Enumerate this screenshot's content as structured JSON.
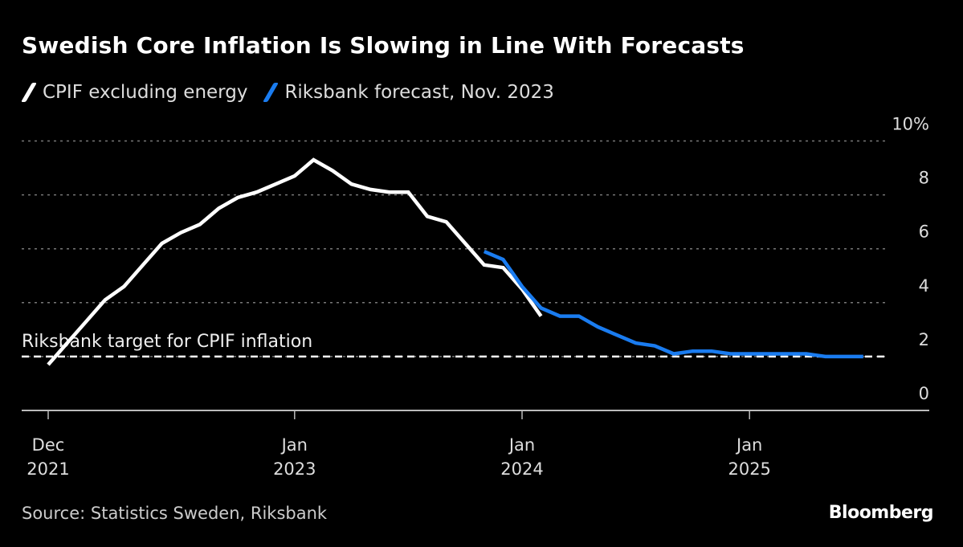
{
  "chart_data": {
    "type": "line",
    "title": "Swedish Core Inflation Is Slowing in Line With Forecasts",
    "xlabel": "",
    "ylabel": "",
    "ylim": [
      0,
      10
    ],
    "yticks": [
      {
        "value": 0,
        "label": "0"
      },
      {
        "value": 2,
        "label": "2"
      },
      {
        "value": 4,
        "label": "4"
      },
      {
        "value": 6,
        "label": "6"
      },
      {
        "value": 8,
        "label": "8"
      },
      {
        "value": 10,
        "label": "10%"
      }
    ],
    "xlim_month_index": [
      0,
      45.5
    ],
    "x_start": "Dec 2021",
    "xticks": [
      {
        "month_index": 0,
        "line1": "Dec",
        "line2": "2021"
      },
      {
        "month_index": 13,
        "line1": "Jan",
        "line2": "2023"
      },
      {
        "month_index": 25,
        "line1": "Jan",
        "line2": "2024"
      },
      {
        "month_index": 37,
        "line1": "Jan",
        "line2": "2025"
      }
    ],
    "grid": "horizontal-dotted",
    "legend_position": "top-left",
    "series": [
      {
        "name": "CPIF excluding energy",
        "color": "#ffffff",
        "start_month_index": 0,
        "x": [
          "Dec 2021",
          "Jan 2022",
          "Feb 2022",
          "Mar 2022",
          "Apr 2022",
          "May 2022",
          "Jun 2022",
          "Jul 2022",
          "Aug 2022",
          "Sep 2022",
          "Oct 2022",
          "Nov 2022",
          "Dec 2022",
          "Jan 2023",
          "Feb 2023",
          "Mar 2023",
          "Apr 2023",
          "May 2023",
          "Jun 2023",
          "Jul 2023",
          "Aug 2023",
          "Sep 2023",
          "Oct 2023",
          "Nov 2023",
          "Dec 2023",
          "Jan 2024",
          "Feb 2024"
        ],
        "values": [
          1.7,
          2.5,
          3.3,
          4.1,
          4.6,
          5.4,
          6.2,
          6.6,
          6.9,
          7.5,
          7.9,
          8.1,
          8.4,
          8.7,
          9.3,
          8.9,
          8.4,
          8.2,
          8.1,
          8.1,
          7.2,
          7.0,
          6.2,
          5.4,
          5.3,
          4.5,
          3.5
        ]
      },
      {
        "name": "Riksbank forecast, Nov. 2023",
        "color": "#1a7cf0",
        "start_month_index": 23,
        "x": [
          "Nov 2023",
          "Dec 2023",
          "Jan 2024",
          "Feb 2024",
          "Mar 2024",
          "Apr 2024",
          "May 2024",
          "Jun 2024",
          "Jul 2024",
          "Aug 2024",
          "Sep 2024",
          "Oct 2024",
          "Nov 2024",
          "Dec 2024",
          "Jan 2025",
          "Feb 2025",
          "Mar 2025",
          "Apr 2025",
          "May 2025",
          "Jun 2025",
          "Jul 2025"
        ],
        "values": [
          5.9,
          5.6,
          4.6,
          3.8,
          3.5,
          3.5,
          3.1,
          2.8,
          2.5,
          2.4,
          2.1,
          2.2,
          2.2,
          2.1,
          2.1,
          2.1,
          2.1,
          2.1,
          2.0,
          2.0,
          2.0
        ]
      }
    ],
    "annotations": [
      {
        "type": "hline",
        "value": 2,
        "style": "dashed",
        "label": "Riksbank target for CPIF inflation"
      }
    ],
    "source": "Source: Statistics Sweden, Riksbank"
  },
  "header": {
    "title": "Swedish Core Inflation Is Slowing in Line With Forecasts"
  },
  "legend": [
    {
      "label": "CPIF excluding energy",
      "color": "#ffffff"
    },
    {
      "label": "Riksbank forecast, Nov. 2023",
      "color": "#1a7cf0"
    }
  ],
  "footer": {
    "source": "Source: Statistics Sweden, Riksbank",
    "brand": "Bloomberg"
  }
}
